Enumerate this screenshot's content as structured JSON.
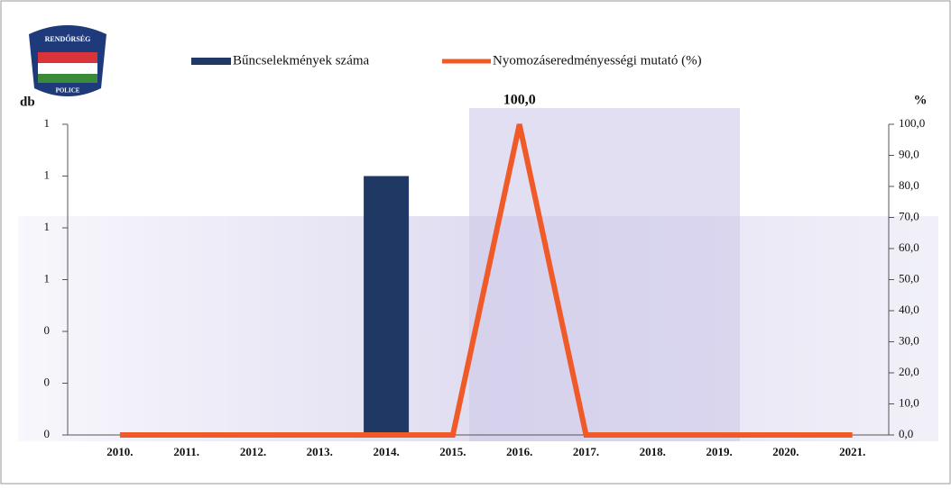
{
  "logo": {
    "top": "RENDŐRSÉG",
    "bottom": "POLICE"
  },
  "chart_data": {
    "type": "bar_line",
    "categories": [
      "2010.",
      "2011.",
      "2012.",
      "2013.",
      "2014.",
      "2015.",
      "2016.",
      "2017.",
      "2018.",
      "2019.",
      "2020.",
      "2021."
    ],
    "series": [
      {
        "name": "Bűncselekmények száma",
        "color": "#1f3864",
        "type": "bar",
        "values": [
          0,
          0,
          0,
          0,
          1,
          0,
          0,
          0,
          0,
          0,
          0,
          0
        ]
      },
      {
        "name": "Nyomozáseredményességi mutató (%)",
        "color": "#f05a28",
        "type": "line",
        "axis": "y2",
        "values": [
          0,
          0,
          0,
          0,
          0,
          0,
          100,
          0,
          0,
          0,
          0,
          0
        ],
        "value_labels": [
          null,
          null,
          null,
          null,
          null,
          null,
          "100,0",
          null,
          null,
          null,
          null,
          null
        ]
      }
    ],
    "ylabel": "db",
    "y2label": "%",
    "ylim": [
      0,
      1.2
    ],
    "yticks": [
      0,
      {
        "value": 0.2,
        "label": "0"
      },
      {
        "value": 0.4,
        "label": "0"
      },
      {
        "value": 0.6,
        "label": "1"
      },
      {
        "value": 0.8,
        "label": "1"
      },
      1,
      {
        "value": 1.2,
        "label": "1"
      }
    ],
    "y2lim": [
      0,
      100
    ],
    "y2ticks": [
      {
        "value": 0,
        "label": "0,0"
      },
      {
        "value": 10,
        "label": "10,0"
      },
      {
        "value": 20,
        "label": "20,0"
      },
      {
        "value": 30,
        "label": "30,0"
      },
      {
        "value": 40,
        "label": "40,0"
      },
      {
        "value": 50,
        "label": "50,0"
      },
      {
        "value": 60,
        "label": "60,0"
      },
      {
        "value": 70,
        "label": "70,0"
      },
      {
        "value": 80,
        "label": "80,0"
      },
      {
        "value": 90,
        "label": "90,0"
      },
      {
        "value": 100,
        "label": "100,0"
      }
    ]
  }
}
